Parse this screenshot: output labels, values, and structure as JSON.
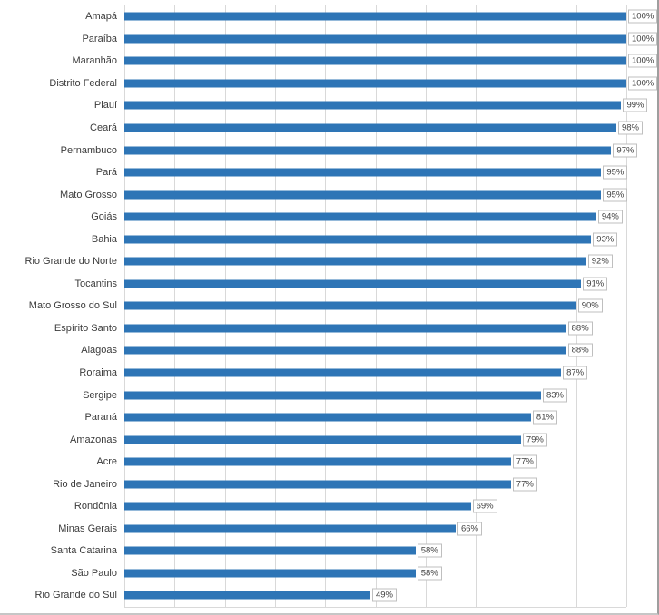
{
  "chart": {
    "background": "#ffffff",
    "bar_color": "#2e75b6",
    "gridline_color": "#d9d9d9",
    "label_box_border": "#bfbfbf",
    "text_color": "#3b3b3b"
  },
  "chart_data": {
    "type": "bar",
    "orientation": "horizontal",
    "title": "",
    "categories": [
      "Amapá",
      "Paraíba",
      "Maranhão",
      "Distrito Federal",
      "Piauí",
      "Ceará",
      "Pernambuco",
      "Pará",
      "Mato Grosso",
      "Goiás",
      "Bahia",
      "Rio Grande do Norte",
      "Tocantins",
      "Mato Grosso do Sul",
      "Espírito Santo",
      "Alagoas",
      "Roraima",
      "Sergipe",
      "Paraná",
      "Amazonas",
      "Acre",
      "Rio de Janeiro",
      "Rondônia",
      "Minas Gerais",
      "Santa Catarina",
      "São Paulo",
      "Rio Grande do Sul"
    ],
    "values": [
      100,
      100,
      100,
      100,
      99,
      98,
      97,
      95,
      95,
      94,
      93,
      92,
      91,
      90,
      88,
      88,
      87,
      83,
      81,
      79,
      77,
      77,
      69,
      66,
      58,
      58,
      49
    ],
    "value_labels": [
      "100%",
      "100%",
      "100%",
      "100%",
      "99%",
      "98%",
      "97%",
      "95%",
      "95%",
      "94%",
      "93%",
      "92%",
      "91%",
      "90%",
      "88%",
      "88%",
      "87%",
      "83%",
      "81%",
      "79%",
      "77%",
      "77%",
      "69%",
      "66%",
      "58%",
      "58%",
      "49%"
    ],
    "xlabel": "",
    "ylabel": "",
    "xlim": [
      0,
      100
    ],
    "gridline_step": 10,
    "grid": "vertical",
    "legend": "none",
    "value_suffix": "%"
  }
}
